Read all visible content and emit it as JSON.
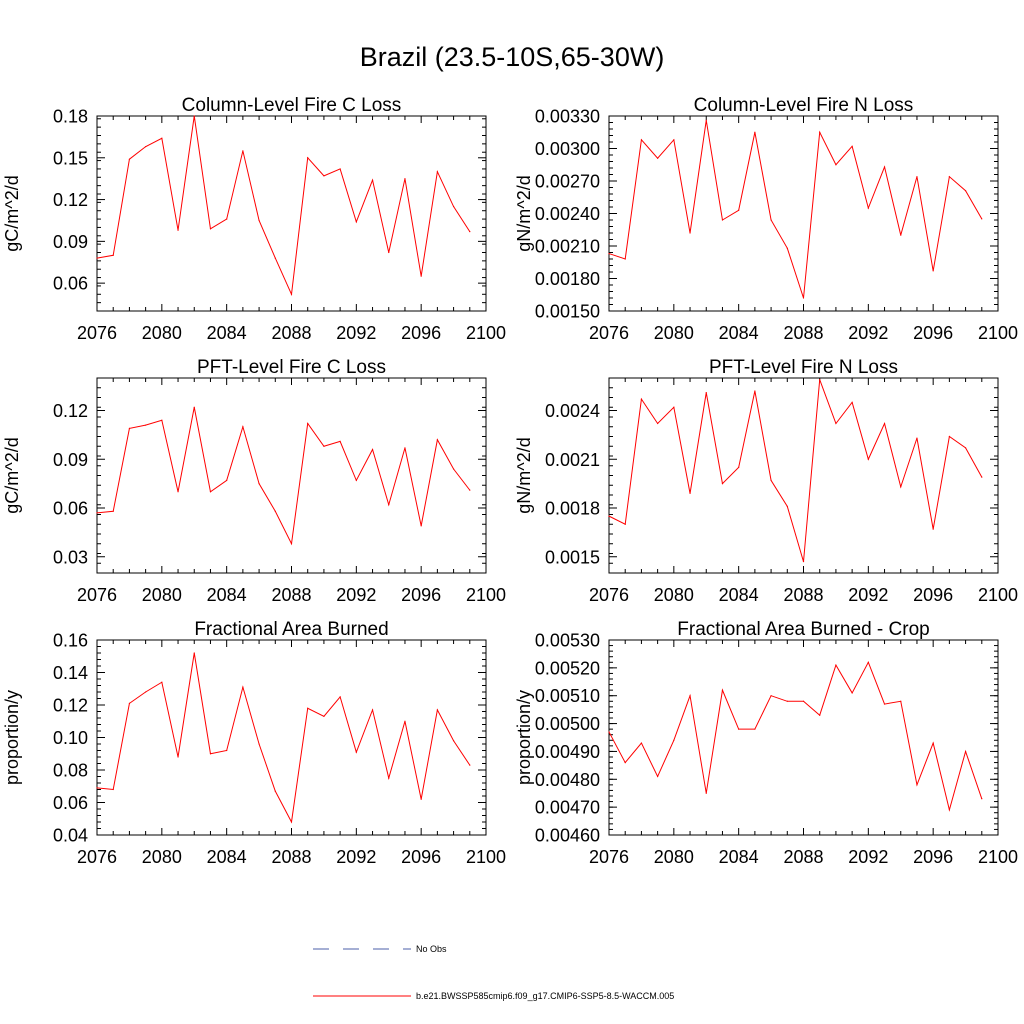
{
  "figure": {
    "title": "Brazil (23.5-10S,65-30W)"
  },
  "legend": [
    {
      "label": "No Obs",
      "color": "#4b5fa8",
      "style": "dashed"
    },
    {
      "label": "b.e21.BWSSP585cmip6.f09_g17.CMIP6-SSP5-8.5-WACCM.005",
      "color": "#ff0000",
      "style": "solid"
    }
  ],
  "chart_data": [
    {
      "type": "line",
      "title": "Column-Level Fire C Loss",
      "xlabel": "",
      "ylabel": "gC/m^2/d",
      "xlim": [
        2076,
        2100
      ],
      "ylim": [
        0.04,
        0.18
      ],
      "xticks": [
        "2076",
        "2080",
        "2084",
        "2088",
        "2092",
        "2096",
        "2100"
      ],
      "yticks": [
        "0.06",
        "0.09",
        "0.12",
        "0.15",
        "0.18"
      ],
      "x": [
        2076,
        2077,
        2078,
        2079,
        2080,
        2081,
        2082,
        2083,
        2084,
        2085,
        2086,
        2087,
        2088,
        2089,
        2090,
        2091,
        2092,
        2093,
        2094,
        2095,
        2096,
        2097,
        2098,
        2099
      ],
      "series": [
        {
          "color": "#ff0000",
          "values": [
            0.078,
            0.08,
            0.149,
            0.158,
            0.164,
            0.098,
            0.18,
            0.099,
            0.106,
            0.155,
            0.105,
            0.078,
            0.052,
            0.15,
            0.137,
            0.142,
            0.104,
            0.134,
            0.082,
            0.135,
            0.065,
            0.14,
            0.115,
            0.097
          ]
        }
      ]
    },
    {
      "type": "line",
      "title": "Column-Level Fire N Loss",
      "xlabel": "",
      "ylabel": "gN/m^2/d",
      "xlim": [
        2076,
        2100
      ],
      "ylim": [
        0.0015,
        0.0033
      ],
      "xticks": [
        "2076",
        "2080",
        "2084",
        "2088",
        "2092",
        "2096",
        "2100"
      ],
      "yticks": [
        "0.00150",
        "0.00180",
        "0.00210",
        "0.00240",
        "0.00270",
        "0.00300",
        "0.00330"
      ],
      "x": [
        2076,
        2077,
        2078,
        2079,
        2080,
        2081,
        2082,
        2083,
        2084,
        2085,
        2086,
        2087,
        2088,
        2089,
        2090,
        2091,
        2092,
        2093,
        2094,
        2095,
        2096,
        2097,
        2098,
        2099
      ],
      "series": [
        {
          "color": "#ff0000",
          "values": [
            0.00203,
            0.00198,
            0.00308,
            0.00291,
            0.00308,
            0.00222,
            0.00326,
            0.00234,
            0.00243,
            0.00315,
            0.00234,
            0.00208,
            0.00162,
            0.00315,
            0.00285,
            0.00302,
            0.00245,
            0.00283,
            0.0022,
            0.00274,
            0.00187,
            0.00274,
            0.00261,
            0.00235
          ]
        }
      ]
    },
    {
      "type": "line",
      "title": "PFT-Level Fire C Loss",
      "xlabel": "",
      "ylabel": "gC/m^2/d",
      "xlim": [
        2076,
        2100
      ],
      "ylim": [
        0.02,
        0.14
      ],
      "xticks": [
        "2076",
        "2080",
        "2084",
        "2088",
        "2092",
        "2096",
        "2100"
      ],
      "yticks": [
        "0.03",
        "0.06",
        "0.09",
        "0.12"
      ],
      "x": [
        2076,
        2077,
        2078,
        2079,
        2080,
        2081,
        2082,
        2083,
        2084,
        2085,
        2086,
        2087,
        2088,
        2089,
        2090,
        2091,
        2092,
        2093,
        2094,
        2095,
        2096,
        2097,
        2098,
        2099
      ],
      "series": [
        {
          "color": "#ff0000",
          "values": [
            0.057,
            0.058,
            0.109,
            0.111,
            0.114,
            0.07,
            0.122,
            0.07,
            0.077,
            0.11,
            0.075,
            0.058,
            0.038,
            0.112,
            0.098,
            0.101,
            0.077,
            0.096,
            0.062,
            0.097,
            0.049,
            0.102,
            0.084,
            0.071
          ]
        }
      ]
    },
    {
      "type": "line",
      "title": "PFT-Level Fire N Loss",
      "xlabel": "",
      "ylabel": "gN/m^2/d",
      "xlim": [
        2076,
        2100
      ],
      "ylim": [
        0.0014,
        0.0026
      ],
      "xticks": [
        "2076",
        "2080",
        "2084",
        "2088",
        "2092",
        "2096",
        "2100"
      ],
      "yticks": [
        "0.0015",
        "0.0018",
        "0.0021",
        "0.0024"
      ],
      "x": [
        2076,
        2077,
        2078,
        2079,
        2080,
        2081,
        2082,
        2083,
        2084,
        2085,
        2086,
        2087,
        2088,
        2089,
        2090,
        2091,
        2092,
        2093,
        2094,
        2095,
        2096,
        2097,
        2098,
        2099
      ],
      "series": [
        {
          "color": "#ff0000",
          "values": [
            0.00175,
            0.0017,
            0.00247,
            0.00232,
            0.00242,
            0.00189,
            0.00251,
            0.00195,
            0.00205,
            0.00252,
            0.00197,
            0.00181,
            0.00147,
            0.00259,
            0.00232,
            0.00245,
            0.0021,
            0.00232,
            0.00193,
            0.00223,
            0.00167,
            0.00224,
            0.00217,
            0.00199
          ]
        }
      ]
    },
    {
      "type": "line",
      "title": "Fractional Area Burned",
      "xlabel": "",
      "ylabel": "proportion/y",
      "xlim": [
        2076,
        2100
      ],
      "ylim": [
        0.04,
        0.16
      ],
      "xticks": [
        "2076",
        "2080",
        "2084",
        "2088",
        "2092",
        "2096",
        "2100"
      ],
      "yticks": [
        "0.04",
        "0.06",
        "0.08",
        "0.10",
        "0.12",
        "0.14",
        "0.16"
      ],
      "x": [
        2076,
        2077,
        2078,
        2079,
        2080,
        2081,
        2082,
        2083,
        2084,
        2085,
        2086,
        2087,
        2088,
        2089,
        2090,
        2091,
        2092,
        2093,
        2094,
        2095,
        2096,
        2097,
        2098,
        2099
      ],
      "series": [
        {
          "color": "#ff0000",
          "values": [
            0.069,
            0.068,
            0.121,
            0.128,
            0.134,
            0.088,
            0.152,
            0.09,
            0.092,
            0.131,
            0.096,
            0.067,
            0.048,
            0.118,
            0.113,
            0.125,
            0.091,
            0.117,
            0.075,
            0.11,
            0.062,
            0.117,
            0.098,
            0.083
          ]
        }
      ]
    },
    {
      "type": "line",
      "title": "Fractional Area Burned - Crop",
      "xlabel": "",
      "ylabel": "proportion/y",
      "xlim": [
        2076,
        2100
      ],
      "ylim": [
        0.0046,
        0.0053
      ],
      "xticks": [
        "2076",
        "2080",
        "2084",
        "2088",
        "2092",
        "2096",
        "2100"
      ],
      "yticks": [
        "0.00460",
        "0.00470",
        "0.00480",
        "0.00490",
        "0.00500",
        "0.00510",
        "0.00520",
        "0.00530"
      ],
      "x": [
        2076,
        2077,
        2078,
        2079,
        2080,
        2081,
        2082,
        2083,
        2084,
        2085,
        2086,
        2087,
        2088,
        2089,
        2090,
        2091,
        2092,
        2093,
        2094,
        2095,
        2096,
        2097,
        2098,
        2099
      ],
      "series": [
        {
          "color": "#ff0000",
          "values": [
            0.00497,
            0.00486,
            0.00493,
            0.00481,
            0.00494,
            0.0051,
            0.00475,
            0.00512,
            0.00498,
            0.00498,
            0.0051,
            0.00508,
            0.00508,
            0.00503,
            0.00521,
            0.00511,
            0.00522,
            0.00507,
            0.00508,
            0.00478,
            0.00493,
            0.00469,
            0.0049,
            0.00473
          ]
        }
      ]
    }
  ]
}
